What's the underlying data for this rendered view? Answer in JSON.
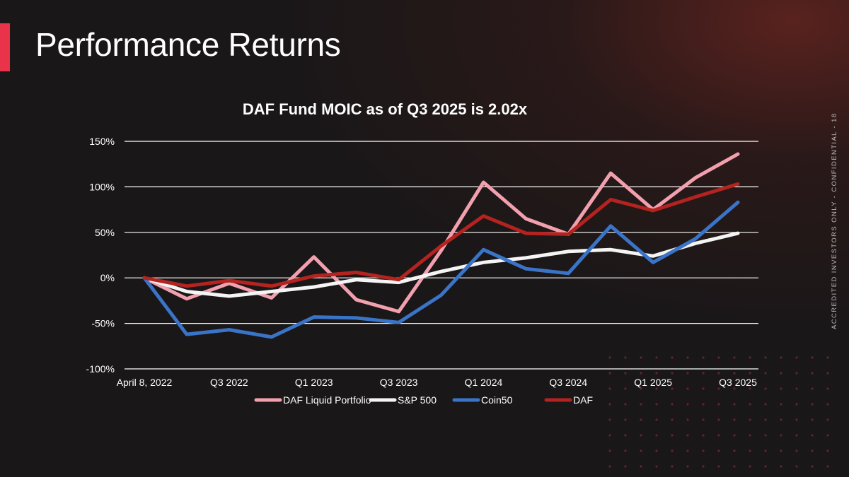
{
  "slide": {
    "title": "Performance Returns",
    "side_note": "ACCREDITED INVESTORS ONLY - CONFIDENTIAL - 18"
  },
  "colors": {
    "accent": "#e8334a",
    "background": "#1a1718",
    "grid": "#ffffff",
    "text": "#ffffff"
  },
  "chart_data": {
    "type": "line",
    "title": "DAF Fund MOIC as of Q3 2025 is 2.02x",
    "xlabel": "",
    "ylabel": "",
    "ylim": [
      -100,
      150
    ],
    "yticks": [
      150,
      100,
      50,
      0,
      -50,
      -100
    ],
    "ytick_labels": [
      "150%",
      "100%",
      "50%",
      "0%",
      "-50%",
      "-100%"
    ],
    "grid": true,
    "legend_position": "bottom",
    "x": [
      "April 8, 2022",
      "Q2 2022",
      "Q3 2022",
      "Q4 2022",
      "Q1 2023",
      "Q2 2023",
      "Q3 2023",
      "Q4 2023",
      "Q1 2024",
      "Q2 2024",
      "Q3 2024",
      "Q4 2024",
      "Q1 2025",
      "Q2 2025",
      "Q3 2025"
    ],
    "xtick_labels": [
      "April 8, 2022",
      "",
      "Q3 2022",
      "",
      "Q1 2023",
      "",
      "Q3 2023",
      "",
      "Q1 2024",
      "",
      "Q3 2024",
      "",
      "Q1 2025",
      "",
      "Q3 2025"
    ],
    "series": [
      {
        "name": "DAF Liquid Portfolio",
        "color": "#f2a0ae",
        "values": [
          0,
          -23,
          -6,
          -22,
          23,
          -24,
          -37,
          30,
          105,
          65,
          48,
          115,
          75,
          110,
          136
        ]
      },
      {
        "name": "S&P 500",
        "color": "#f4f4f4",
        "values": [
          0,
          -15,
          -20,
          -15,
          -10,
          -2,
          -5,
          7,
          17,
          22,
          29,
          31,
          24,
          38,
          49
        ]
      },
      {
        "name": "Coin50",
        "color": "#3a74c8",
        "values": [
          0,
          -62,
          -57,
          -65,
          -43,
          -44,
          -49,
          -19,
          31,
          10,
          5,
          57,
          17,
          43,
          83
        ]
      },
      {
        "name": "DAF",
        "color": "#b3231f",
        "values": [
          0,
          -9,
          -3,
          -9,
          2,
          6,
          -2,
          35,
          68,
          49,
          48,
          86,
          74,
          89,
          103
        ]
      }
    ]
  }
}
